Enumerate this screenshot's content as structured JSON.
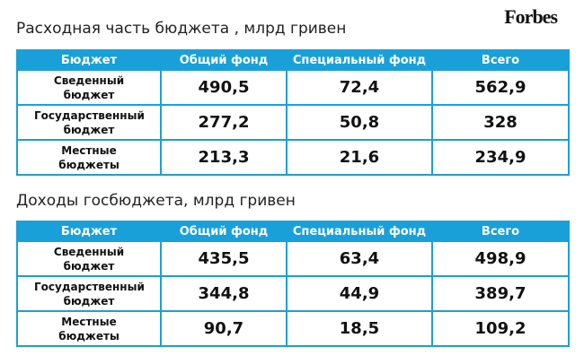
{
  "logo": "Forbes",
  "tables": [
    {
      "title": "Расходная часть бюджета , млрд гривен",
      "header": [
        "Бюджет",
        "Общий фонд",
        "Специальный фонд",
        "Всего"
      ],
      "rows": [
        [
          "Сведенный бюджет",
          "490,5",
          "72,4",
          "562,9"
        ],
        [
          "Государственный бюджет",
          "277,2",
          "50,8",
          "328"
        ],
        [
          "Местные бюджеты",
          "213,3",
          "21,6",
          "234,9"
        ]
      ]
    },
    {
      "title": "Доходы госбюджета, млрд гривен",
      "header": [
        "Бюджет",
        "Общий фонд",
        "Специальный фонд",
        "Всего"
      ],
      "rows": [
        [
          "Сведенный бюджет",
          "435,5",
          "63,4",
          "498,9"
        ],
        [
          "Государственный бюджет",
          "344,8",
          "44,9",
          "389,7"
        ],
        [
          "Местные бюджеты",
          "90,7",
          "18,5",
          "109,2"
        ]
      ]
    }
  ]
}
